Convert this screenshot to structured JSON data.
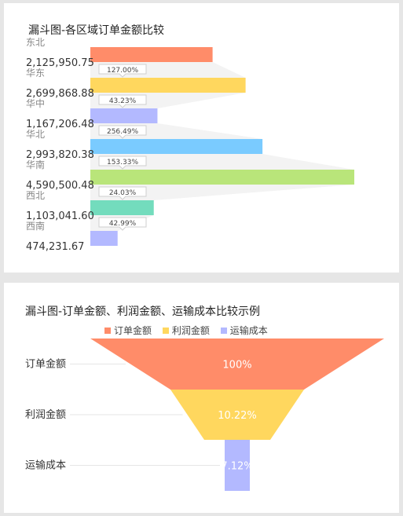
{
  "chart_data": [
    {
      "type": "bar",
      "title": "漏斗图-各区域订单金额比较",
      "categories": [
        "东北",
        "华东",
        "华中",
        "华北",
        "华南",
        "西北",
        "西南"
      ],
      "values": [
        2125950.75,
        2699868.88,
        1167206.48,
        2993820.38,
        4590500.48,
        1103041.6,
        474231.67
      ],
      "value_labels": [
        "2,125,950.75",
        "2,699,868.88",
        "1,167,206.48",
        "2,993,820.38",
        "4,590,500.48",
        "1,103,041.60",
        "474,231.67"
      ],
      "ratios": [
        "127.00%",
        "43.23%",
        "256.49%",
        "153.33%",
        "24.03%",
        "42.99%"
      ],
      "colors": [
        "#ff8c69",
        "#ffd75e",
        "#b3b9ff",
        "#7acbff",
        "#b9e57a",
        "#73dcbd",
        "#b3b9ff"
      ]
    },
    {
      "type": "funnel",
      "title": "漏斗图-订单金额、利润金额、运输成本比较示例",
      "categories": [
        "订单金额",
        "利润金额",
        "运输成本"
      ],
      "labels": [
        "100%",
        "10.22%",
        "7.12%"
      ],
      "values": [
        100,
        10.22,
        7.12
      ],
      "colors": [
        "#ff8c69",
        "#ffd75e",
        "#b3b9ff"
      ],
      "legend": [
        {
          "label": "订单金额",
          "color": "#ff8c69"
        },
        {
          "label": "利润金额",
          "color": "#ffd75e"
        },
        {
          "label": "运输成本",
          "color": "#b3b9ff"
        }
      ]
    }
  ]
}
